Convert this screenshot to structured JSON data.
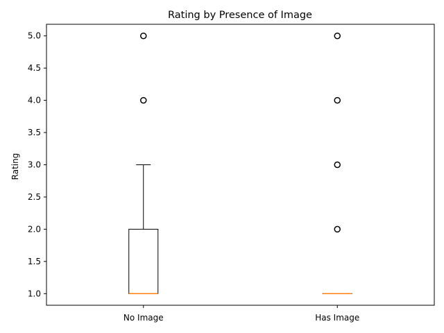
{
  "chart_data": {
    "type": "boxplot",
    "title": "Rating by Presence of Image",
    "xlabel": "",
    "ylabel": "Rating",
    "categories": [
      "No Image",
      "Has Image"
    ],
    "ylim": [
      0.82,
      5.18
    ],
    "yticks": [
      "1.0",
      "1.5",
      "2.0",
      "2.5",
      "3.0",
      "3.5",
      "4.0",
      "4.5",
      "5.0"
    ],
    "grid": false,
    "boxes": [
      {
        "category": "No Image",
        "whisker_low": 1.0,
        "q1": 1.0,
        "median": 1.0,
        "q3": 2.0,
        "whisker_high": 3.0,
        "outliers": [
          4.0,
          5.0
        ]
      },
      {
        "category": "Has Image",
        "whisker_low": 1.0,
        "q1": 1.0,
        "median": 1.0,
        "q3": 1.0,
        "whisker_high": 1.0,
        "outliers": [
          2.0,
          3.0,
          4.0,
          5.0
        ]
      }
    ],
    "colors": {
      "box": "#000000",
      "median": "#ff7f0e",
      "outlier_edge": "#000000"
    }
  }
}
